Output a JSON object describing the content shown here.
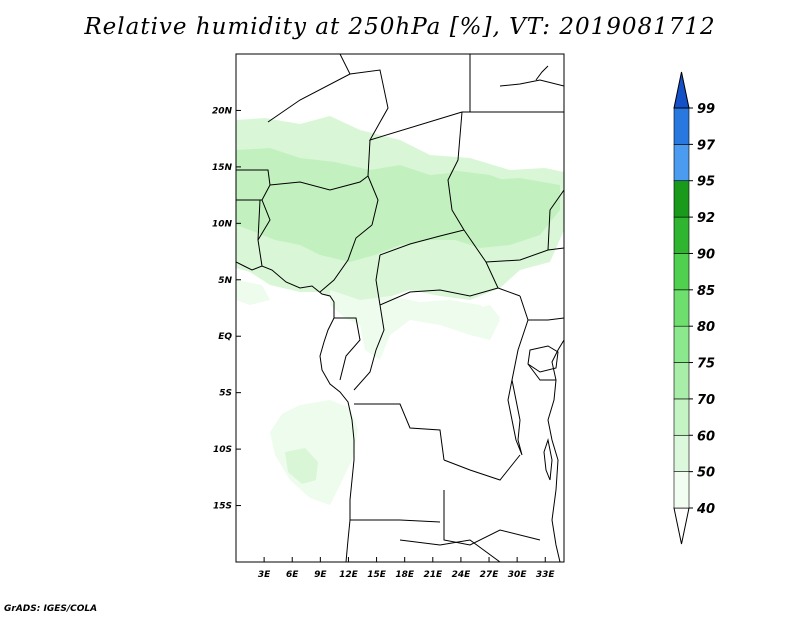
{
  "title": "Relative humidity at 250hPa [%], VT: 2019081712",
  "credit": "GrADS: IGES/COLA",
  "map": {
    "lon_range": [
      0,
      35
    ],
    "lat_range": [
      -20,
      25
    ],
    "lon_ticks": [
      "3E",
      "6E",
      "9E",
      "12E",
      "15E",
      "18E",
      "21E",
      "24E",
      "27E",
      "30E",
      "33E"
    ],
    "lat_ticks": [
      "20N",
      "15N",
      "10N",
      "5N",
      "EQ",
      "5S",
      "10S",
      "15S"
    ]
  },
  "colorbar": {
    "levels": [
      "40",
      "50",
      "60",
      "70",
      "75",
      "80",
      "85",
      "90",
      "92",
      "95",
      "97",
      "99"
    ],
    "colors": [
      "#f0fdf0",
      "#dcf8dc",
      "#c4f4c4",
      "#a8eea8",
      "#8ce88c",
      "#6ede6e",
      "#4fd04f",
      "#2fb52f",
      "#1a9a1a",
      "#4b9cf0",
      "#2878e0",
      "#1450c8"
    ]
  },
  "humidity_colors": {
    "low": "#eefced",
    "mid": "#d9f7d7",
    "high": "#c2f1bf"
  }
}
